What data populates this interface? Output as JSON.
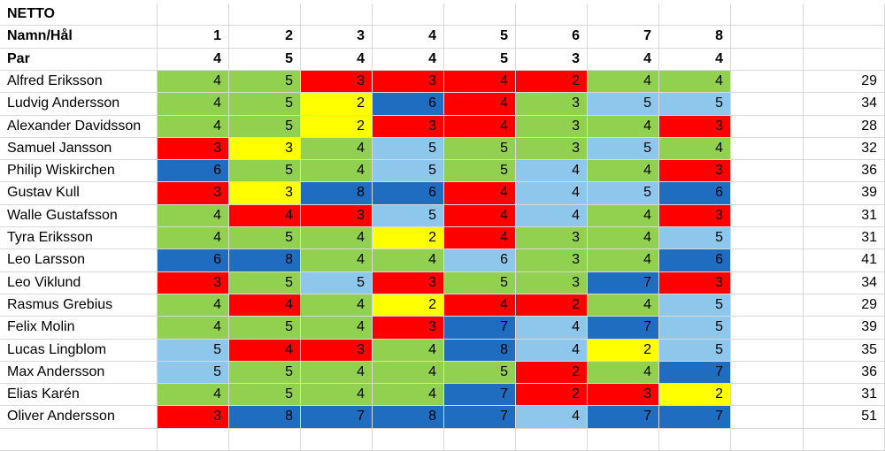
{
  "sheet": {
    "title": "NETTO",
    "header_label": "Namn/Hål",
    "par_label": "Par",
    "holes": [
      "1",
      "2",
      "3",
      "4",
      "5",
      "6",
      "7",
      "8"
    ],
    "par": [
      "4",
      "5",
      "4",
      "4",
      "5",
      "3",
      "4",
      "4"
    ],
    "colors": {
      "G": "#92d050",
      "R": "#ff0000",
      "Y": "#ffff00",
      "L": "#8dc8ec",
      "D": "#1f6dc0"
    },
    "players": [
      {
        "name": "Alfred Eriksson",
        "scores": [
          "4",
          "5",
          "3",
          "3",
          "4",
          "2",
          "4",
          "4"
        ],
        "colors": [
          "G",
          "G",
          "R",
          "R",
          "R",
          "R",
          "G",
          "G"
        ],
        "total": "29"
      },
      {
        "name": "Ludvig Andersson",
        "scores": [
          "4",
          "5",
          "2",
          "6",
          "4",
          "3",
          "5",
          "5"
        ],
        "colors": [
          "G",
          "G",
          "Y",
          "D",
          "R",
          "G",
          "L",
          "L"
        ],
        "total": "34"
      },
      {
        "name": "Alexander Davidsson",
        "scores": [
          "4",
          "5",
          "2",
          "3",
          "4",
          "3",
          "4",
          "3"
        ],
        "colors": [
          "G",
          "G",
          "Y",
          "R",
          "R",
          "G",
          "G",
          "R"
        ],
        "total": "28"
      },
      {
        "name": "Samuel Jansson",
        "scores": [
          "3",
          "3",
          "4",
          "5",
          "5",
          "3",
          "5",
          "4"
        ],
        "colors": [
          "R",
          "Y",
          "G",
          "L",
          "G",
          "G",
          "L",
          "G"
        ],
        "total": "32"
      },
      {
        "name": "Philip Wiskirchen",
        "scores": [
          "6",
          "5",
          "4",
          "5",
          "5",
          "4",
          "4",
          "3"
        ],
        "colors": [
          "D",
          "G",
          "G",
          "L",
          "G",
          "L",
          "G",
          "R"
        ],
        "total": "36"
      },
      {
        "name": "Gustav Kull",
        "scores": [
          "3",
          "3",
          "8",
          "6",
          "4",
          "4",
          "5",
          "6"
        ],
        "colors": [
          "R",
          "Y",
          "D",
          "D",
          "R",
          "L",
          "L",
          "D"
        ],
        "total": "39"
      },
      {
        "name": "Walle Gustafsson",
        "scores": [
          "4",
          "4",
          "3",
          "5",
          "4",
          "4",
          "4",
          "3"
        ],
        "colors": [
          "G",
          "R",
          "R",
          "L",
          "R",
          "L",
          "G",
          "R"
        ],
        "total": "31"
      },
      {
        "name": "Tyra Eriksson",
        "scores": [
          "4",
          "5",
          "4",
          "2",
          "4",
          "3",
          "4",
          "5"
        ],
        "colors": [
          "G",
          "G",
          "G",
          "Y",
          "R",
          "G",
          "G",
          "L"
        ],
        "total": "31"
      },
      {
        "name": "Leo Larsson",
        "scores": [
          "6",
          "8",
          "4",
          "4",
          "6",
          "3",
          "4",
          "6"
        ],
        "colors": [
          "D",
          "D",
          "G",
          "G",
          "L",
          "G",
          "G",
          "D"
        ],
        "total": "41"
      },
      {
        "name": "Leo Viklund",
        "scores": [
          "3",
          "5",
          "5",
          "3",
          "5",
          "3",
          "7",
          "3"
        ],
        "colors": [
          "R",
          "G",
          "L",
          "R",
          "G",
          "G",
          "D",
          "R"
        ],
        "total": "34"
      },
      {
        "name": "Rasmus Grebius",
        "scores": [
          "4",
          "4",
          "4",
          "2",
          "4",
          "2",
          "4",
          "5"
        ],
        "colors": [
          "G",
          "R",
          "G",
          "Y",
          "R",
          "R",
          "G",
          "L"
        ],
        "total": "29"
      },
      {
        "name": "Felix Molin",
        "scores": [
          "4",
          "5",
          "4",
          "3",
          "7",
          "4",
          "7",
          "5"
        ],
        "colors": [
          "G",
          "G",
          "G",
          "R",
          "D",
          "L",
          "D",
          "L"
        ],
        "total": "39"
      },
      {
        "name": "Lucas Lingblom",
        "scores": [
          "5",
          "4",
          "3",
          "4",
          "8",
          "4",
          "2",
          "5"
        ],
        "colors": [
          "L",
          "R",
          "R",
          "G",
          "D",
          "L",
          "Y",
          "L"
        ],
        "total": "35"
      },
      {
        "name": "Max Andersson",
        "scores": [
          "5",
          "5",
          "4",
          "4",
          "5",
          "2",
          "4",
          "7"
        ],
        "colors": [
          "L",
          "G",
          "G",
          "G",
          "G",
          "R",
          "G",
          "D"
        ],
        "total": "36"
      },
      {
        "name": "Elias Karén",
        "scores": [
          "4",
          "5",
          "4",
          "4",
          "7",
          "2",
          "3",
          "2"
        ],
        "colors": [
          "G",
          "G",
          "G",
          "G",
          "D",
          "R",
          "R",
          "Y"
        ],
        "total": "31"
      },
      {
        "name": "Oliver Andersson",
        "scores": [
          "3",
          "8",
          "7",
          "8",
          "7",
          "4",
          "7",
          "7"
        ],
        "colors": [
          "R",
          "D",
          "D",
          "D",
          "D",
          "L",
          "D",
          "D"
        ],
        "total": "51"
      }
    ]
  }
}
